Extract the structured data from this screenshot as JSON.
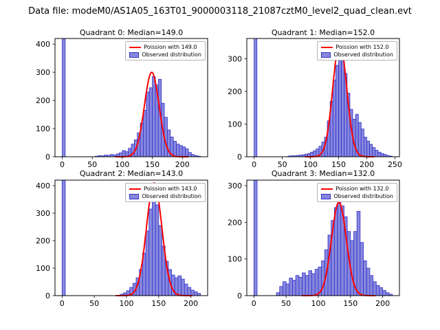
{
  "figure": {
    "suptitle": "Data file: modeM0/AS1A05_163T01_9000003118_21087cztM0_level2_quad_clean.evt",
    "background": "#ffffff",
    "bar_fill": "#8787de",
    "bar_edge": "#3030c8",
    "curve_color": "#ff0000",
    "frame_color": "#000000"
  },
  "chart_data": [
    {
      "type": "bar",
      "title": "Quadrant 0: Median=149.0",
      "median": 149.0,
      "legend": [
        "Poission with 149.0",
        "Observed distribution"
      ],
      "legend_position": "upper right",
      "grid": false,
      "bin_start": 0,
      "bin_width": 5,
      "counts": [
        420,
        0,
        0,
        0,
        0,
        0,
        0,
        0,
        0,
        0,
        0,
        2,
        4,
        3,
        6,
        5,
        8,
        6,
        10,
        14,
        22,
        18,
        30,
        45,
        60,
        85,
        120,
        165,
        230,
        245,
        285,
        255,
        275,
        190,
        140,
        95,
        70,
        55,
        45,
        40,
        35,
        28,
        15,
        8,
        4,
        2
      ],
      "curve": {
        "lambda": 149,
        "peak": 300
      },
      "xlim": [
        -12,
        242
      ],
      "ylim": [
        0,
        420
      ],
      "xticks": [
        0,
        50,
        100,
        150,
        200
      ],
      "yticks": [
        0,
        100,
        200,
        300,
        400
      ]
    },
    {
      "type": "bar",
      "title": "Quadrant 1: Median=152.0",
      "median": 152.0,
      "legend": [
        "Poission with 152.0",
        "Observed distribution"
      ],
      "legend_position": "upper right",
      "grid": false,
      "bin_start": 0,
      "bin_width": 5,
      "counts": [
        380,
        0,
        0,
        0,
        0,
        0,
        0,
        0,
        0,
        0,
        0,
        0,
        2,
        3,
        3,
        4,
        5,
        6,
        8,
        10,
        14,
        18,
        24,
        32,
        45,
        60,
        110,
        170,
        235,
        280,
        330,
        300,
        255,
        195,
        145,
        115,
        130,
        105,
        85,
        60,
        48,
        38,
        28,
        20,
        14,
        10,
        7,
        4,
        2
      ],
      "curve": {
        "lambda": 152,
        "peak": 350
      },
      "xlim": [
        -13,
        258
      ],
      "ylim": [
        0,
        362
      ],
      "xticks": [
        0,
        50,
        100,
        150,
        200,
        250
      ],
      "yticks": [
        0,
        100,
        200,
        300
      ]
    },
    {
      "type": "bar",
      "title": "Quadrant 2: Median=143.0",
      "median": 143.0,
      "legend": [
        "Poission with 143.0",
        "Observed distribution"
      ],
      "legend_position": "upper right",
      "grid": false,
      "bin_start": 0,
      "bin_width": 5,
      "counts": [
        420,
        0,
        0,
        0,
        0,
        0,
        0,
        0,
        0,
        0,
        0,
        0,
        0,
        0,
        0,
        0,
        0,
        0,
        5,
        10,
        18,
        30,
        45,
        65,
        95,
        155,
        235,
        315,
        375,
        330,
        255,
        180,
        125,
        95,
        75,
        65,
        72,
        60,
        42,
        30,
        20,
        14,
        8
      ],
      "curve": {
        "lambda": 143,
        "peak": 410
      },
      "xlim": [
        -11,
        226
      ],
      "ylim": [
        0,
        420
      ],
      "xticks": [
        0,
        50,
        100,
        150,
        200
      ],
      "yticks": [
        0,
        100,
        200,
        300,
        400
      ]
    },
    {
      "type": "bar",
      "title": "Quadrant 3: Median=132.0",
      "median": 132.0,
      "legend": [
        "Poission with 132.0",
        "Observed distribution"
      ],
      "legend_position": "upper right",
      "grid": false,
      "bin_start": 0,
      "bin_width": 5,
      "counts": [
        320,
        0,
        0,
        0,
        0,
        0,
        0,
        8,
        25,
        38,
        32,
        48,
        42,
        55,
        50,
        62,
        55,
        68,
        60,
        72,
        78,
        95,
        125,
        165,
        205,
        240,
        255,
        245,
        215,
        175,
        150,
        175,
        230,
        145,
        95,
        75,
        55,
        38,
        28,
        22,
        14,
        8,
        4
      ],
      "curve": {
        "lambda": 132,
        "peak": 255
      },
      "xlim": [
        -11,
        226
      ],
      "ylim": [
        0,
        315
      ],
      "xticks": [
        0,
        50,
        100,
        150,
        200
      ],
      "yticks": [
        0,
        100,
        200,
        300
      ]
    }
  ]
}
